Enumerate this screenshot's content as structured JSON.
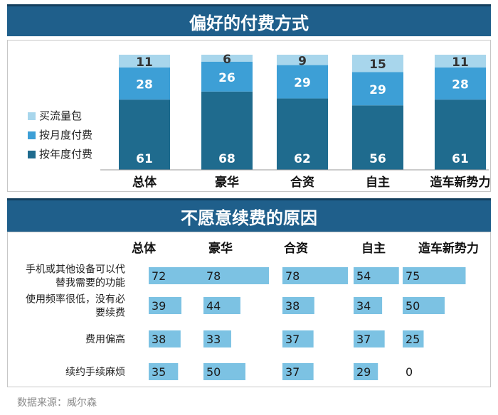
{
  "titles": {
    "top": "偏好的付费方式",
    "bottom": "不愿意续费的原因"
  },
  "source": "数据来源：威尔森",
  "colors": {
    "banner": "#1f5f8b",
    "annual": "#1f6b8e",
    "monthly": "#3d9fd6",
    "traffic": "#a8d6ec",
    "hbar": "#7cc2e3"
  },
  "chart_data": [
    {
      "type": "bar",
      "stacked": true,
      "title": "偏好的付费方式",
      "categories": [
        "总体",
        "豪华",
        "合资",
        "自主",
        "造车新势力"
      ],
      "series": [
        {
          "name": "按年度付费",
          "values": [
            61,
            68,
            62,
            56,
            61
          ]
        },
        {
          "name": "按月度付费",
          "values": [
            28,
            26,
            29,
            29,
            28
          ]
        },
        {
          "name": "买流量包",
          "values": [
            11,
            6,
            9,
            15,
            11
          ]
        }
      ],
      "legend_labels": [
        "买流量包",
        "按月度付费",
        "按年度付费"
      ],
      "legend_position": "left",
      "ylim": [
        0,
        100
      ]
    },
    {
      "type": "bar",
      "orientation": "horizontal",
      "title": "不愿意续费的原因",
      "groups": [
        "总体",
        "豪华",
        "合资",
        "自主",
        "造车新势力"
      ],
      "reasons": [
        {
          "label": [
            "手机或其他设备可以代",
            "替我需要的功能"
          ],
          "values": [
            72,
            78,
            78,
            54,
            75
          ]
        },
        {
          "label": [
            "使用频率很低，没有必",
            "要续费"
          ],
          "values": [
            39,
            44,
            38,
            34,
            50
          ]
        },
        {
          "label": [
            "费用偏高"
          ],
          "values": [
            38,
            33,
            37,
            37,
            25
          ]
        },
        {
          "label": [
            "续约手续麻烦"
          ],
          "values": [
            35,
            50,
            37,
            29,
            0
          ]
        }
      ],
      "xlim": [
        0,
        100
      ]
    }
  ]
}
